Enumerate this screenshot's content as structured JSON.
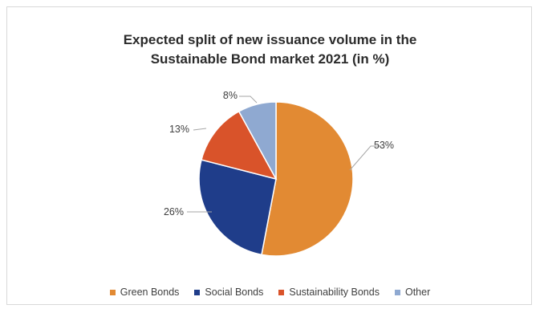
{
  "chart_data": {
    "type": "pie",
    "title_lines": [
      "Expected split of new issuance volume in the",
      "Sustainable Bond market 2021 (in %)"
    ],
    "categories": [
      "Green Bonds",
      "Social Bonds",
      "Sustainability Bonds",
      "Other"
    ],
    "values": [
      53,
      26,
      13,
      8
    ],
    "data_labels": [
      "53%",
      "26%",
      "13%",
      "8%"
    ],
    "colors": [
      "#e28a33",
      "#1f3d8a",
      "#d9532a",
      "#8fa9d1"
    ],
    "legend_position": "bottom"
  }
}
